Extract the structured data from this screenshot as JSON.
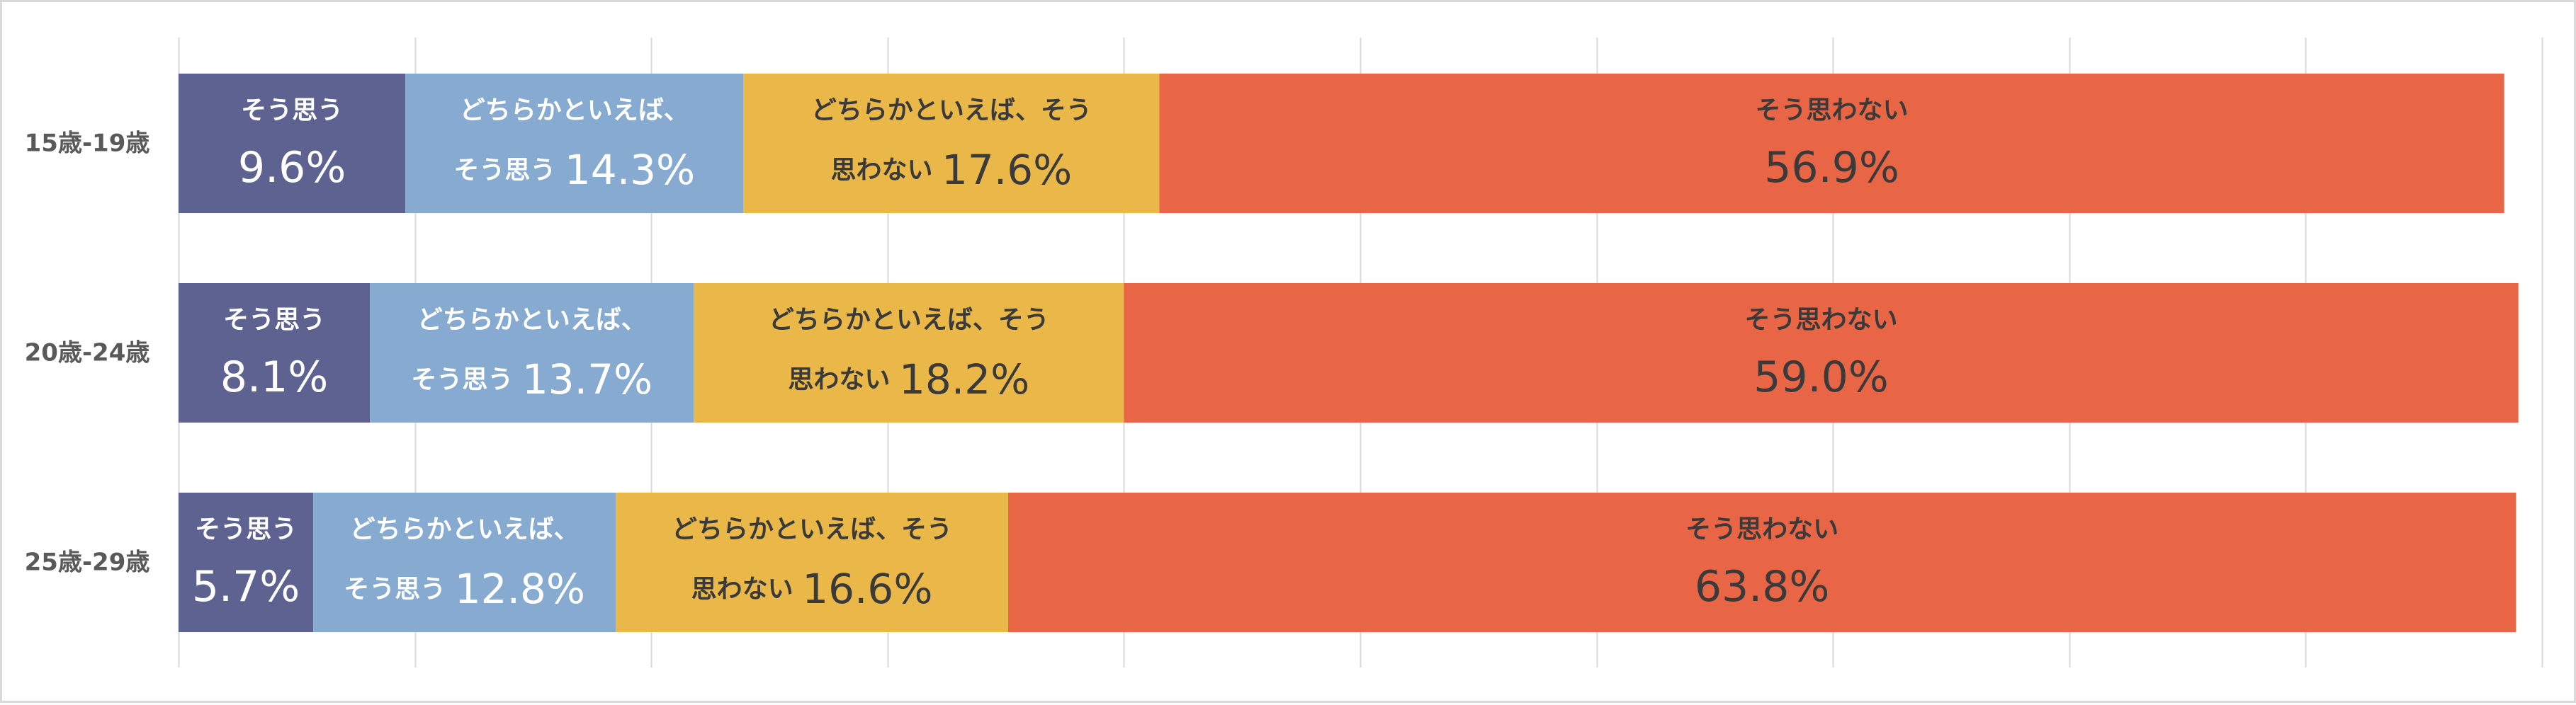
{
  "chart_data": {
    "type": "bar",
    "orientation": "horizontal",
    "stacked": true,
    "percent": true,
    "xlim": [
      0,
      100
    ],
    "grid": true,
    "legend": "none",
    "categories": [
      "15歳-19歳",
      "20歳-24歳",
      "25歳-29歳"
    ],
    "series": [
      {
        "name": "そう思う",
        "label_lines": [
          "そう思う"
        ],
        "color": "#5e6290",
        "text_color": "#ffffff",
        "values": [
          9.6,
          8.1,
          5.7
        ],
        "value_labels": [
          "9.6%",
          "8.1%",
          "5.7%"
        ]
      },
      {
        "name": "どちらかといえば、そう思う",
        "label_lines": [
          "どちらかといえば、",
          "そう思う"
        ],
        "color": "#87abd0",
        "text_color": "#ffffff",
        "values": [
          14.3,
          13.7,
          12.8
        ],
        "value_labels": [
          "14.3%",
          "13.7%",
          "12.8%"
        ]
      },
      {
        "name": "どちらかといえば、そう思わない",
        "label_lines": [
          "どちらかといえば、そう",
          "思わない"
        ],
        "color": "#eab848",
        "text_color": "#3a3a3a",
        "values": [
          17.6,
          18.2,
          16.6
        ],
        "value_labels": [
          "17.6%",
          "18.2%",
          "16.6%"
        ]
      },
      {
        "name": "そう思わない",
        "label_lines": [
          "そう思わない"
        ],
        "color": "#e86645",
        "text_color": "#3a3a3a",
        "values": [
          56.9,
          59.0,
          63.8
        ],
        "value_labels": [
          "56.9%",
          "59.0%",
          "63.8%"
        ]
      }
    ]
  }
}
